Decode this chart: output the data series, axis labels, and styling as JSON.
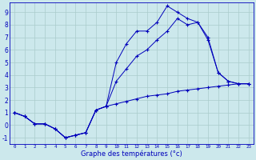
{
  "xlabel": "Graphe des températures (°c)",
  "background_color": "#cce8ec",
  "grid_color": "#aacccc",
  "line_color": "#0000bb",
  "hours": [
    0,
    1,
    2,
    3,
    4,
    5,
    6,
    7,
    8,
    9,
    10,
    11,
    12,
    13,
    14,
    15,
    16,
    17,
    18,
    19,
    20,
    21,
    22,
    23
  ],
  "line1": [
    1.0,
    0.7,
    0.1,
    0.1,
    -0.3,
    -1.0,
    -0.8,
    -0.6,
    1.2,
    1.5,
    1.7,
    1.9,
    2.1,
    2.3,
    2.4,
    2.5,
    2.7,
    2.8,
    2.9,
    3.0,
    3.1,
    3.2,
    3.3,
    3.3
  ],
  "line2": [
    1.0,
    0.7,
    0.1,
    0.1,
    -0.3,
    -1.0,
    -0.8,
    -0.6,
    1.2,
    1.5,
    5.0,
    6.5,
    7.5,
    7.5,
    8.2,
    9.5,
    9.0,
    8.5,
    8.2,
    6.8,
    4.2,
    3.5,
    3.3,
    3.3
  ],
  "line3": [
    1.0,
    0.7,
    0.1,
    0.1,
    -0.3,
    -1.0,
    -0.8,
    -0.6,
    1.2,
    1.5,
    3.5,
    4.5,
    5.5,
    6.0,
    6.8,
    7.5,
    8.5,
    8.0,
    8.2,
    7.0,
    4.2,
    3.5,
    3.3,
    3.3
  ],
  "ylim": [
    -1.5,
    9.8
  ],
  "xlim": [
    -0.5,
    23.5
  ],
  "yticks": [
    -1,
    0,
    1,
    2,
    3,
    4,
    5,
    6,
    7,
    8,
    9
  ]
}
